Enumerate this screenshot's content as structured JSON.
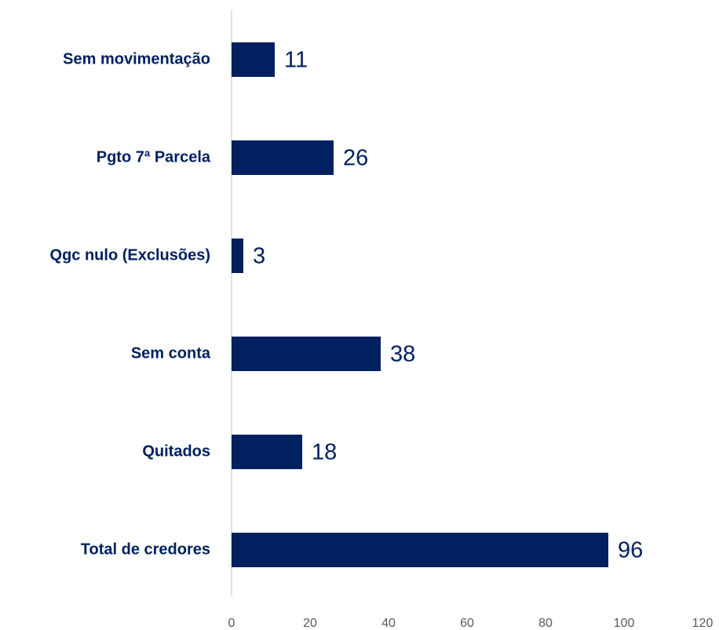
{
  "chart_data": {
    "type": "bar",
    "orientation": "horizontal",
    "categories": [
      "Sem movimentação",
      "Pgto 7ª Parcela",
      "Qgc nulo (Exclusões)",
      "Sem conta",
      "Quitados",
      "Total de credores"
    ],
    "values": [
      11,
      26,
      3,
      38,
      18,
      96
    ],
    "color": "#002060",
    "xlim": [
      0,
      120
    ],
    "xticks": [
      0,
      20,
      40,
      60,
      80,
      100,
      120
    ],
    "grid": false
  }
}
